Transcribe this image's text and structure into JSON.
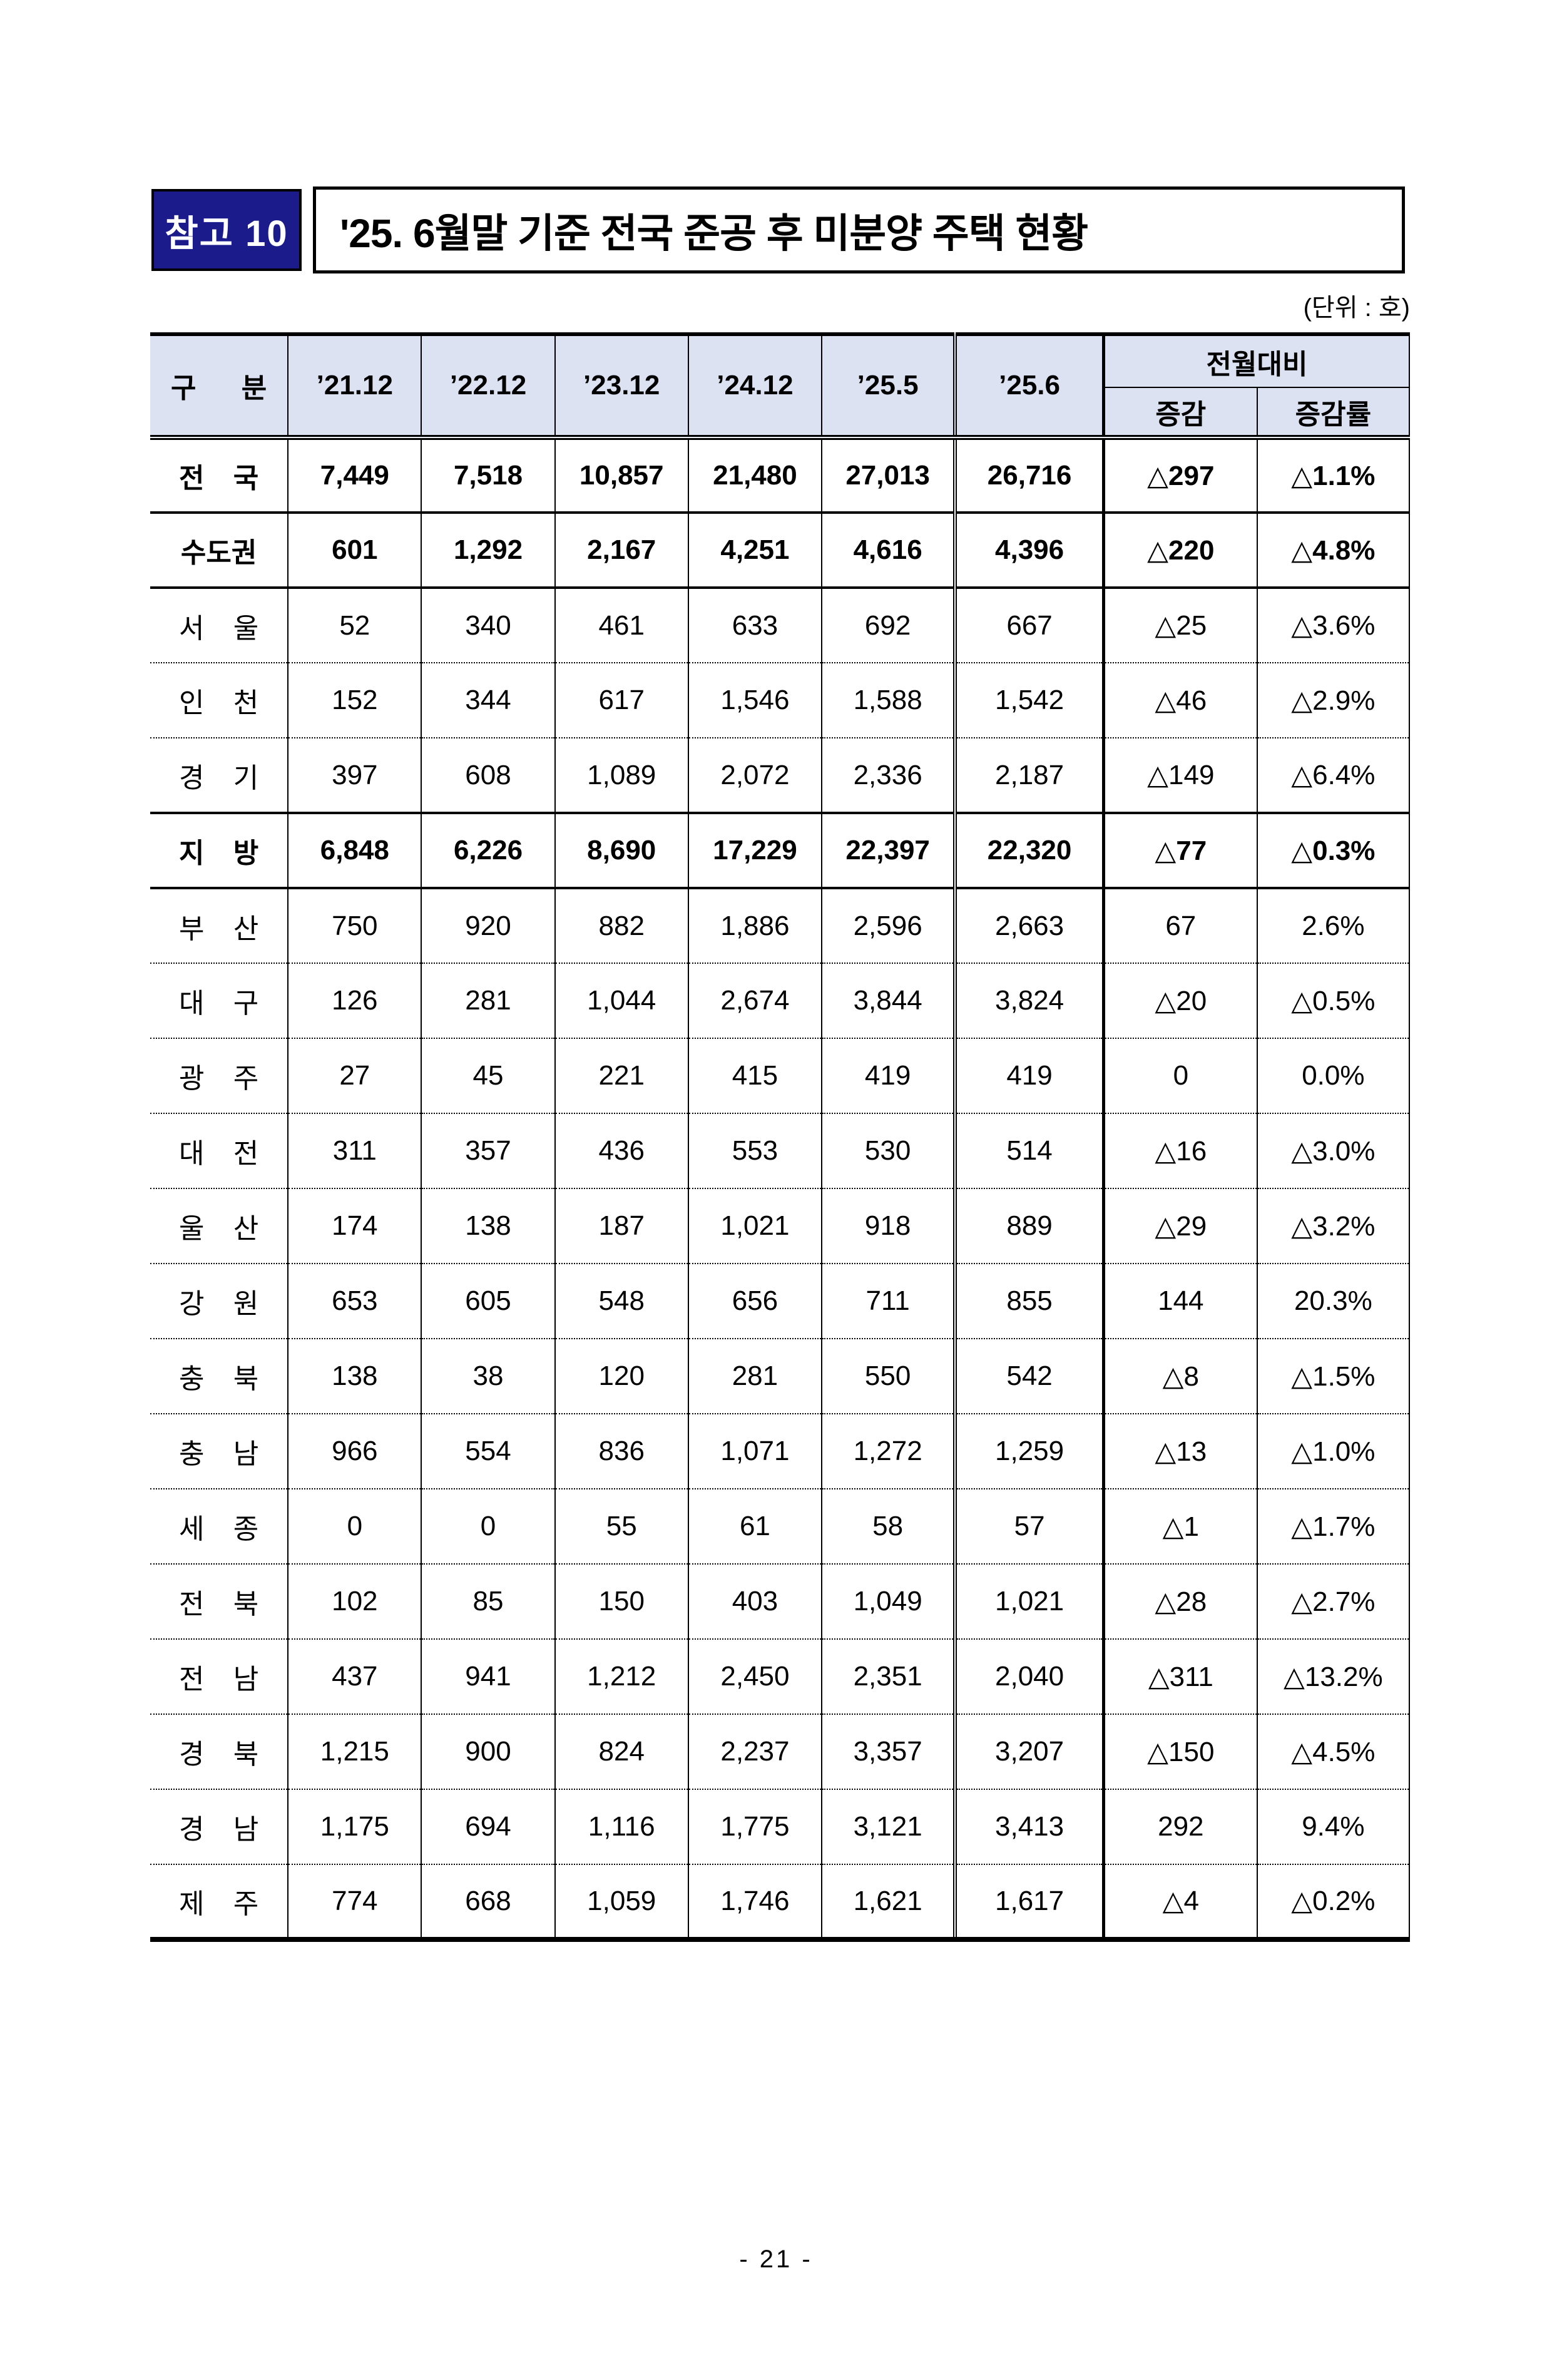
{
  "page": {
    "badge": "참고 10",
    "title": "'25. 6월말 기준 전국 준공 후 미분양 주택 현황",
    "unit_note": "(단위 : 호)",
    "page_number": "- 21 -"
  },
  "colors": {
    "badge_bg": "#1b1b8c",
    "header_bg": "#dde2f3",
    "border": "#000000"
  },
  "table": {
    "col_headers": [
      "구 분",
      "’21.12",
      "’22.12",
      "’23.12",
      "’24.12",
      "’25.5",
      "’25.6"
    ],
    "mom_header": "전월대비",
    "mom_sub_headers": [
      "증감",
      "증감률"
    ],
    "rows": [
      {
        "label": "전 국",
        "values": [
          "7,449",
          "7,518",
          "10,857",
          "21,480",
          "27,013",
          "26,716"
        ],
        "change": "△297",
        "change_rate": "△1.1%",
        "bold": true,
        "border_top": "none"
      },
      {
        "label": "수도권",
        "values": [
          "601",
          "1,292",
          "2,167",
          "4,251",
          "4,616",
          "4,396"
        ],
        "change": "△220",
        "change_rate": "△4.8%",
        "bold": true,
        "border_top": "solid"
      },
      {
        "label": "서 울",
        "values": [
          "52",
          "340",
          "461",
          "633",
          "692",
          "667"
        ],
        "change": "△25",
        "change_rate": "△3.6%",
        "bold": false,
        "border_top": "solid"
      },
      {
        "label": "인 천",
        "values": [
          "152",
          "344",
          "617",
          "1,546",
          "1,588",
          "1,542"
        ],
        "change": "△46",
        "change_rate": "△2.9%",
        "bold": false,
        "border_top": "dotted"
      },
      {
        "label": "경 기",
        "values": [
          "397",
          "608",
          "1,089",
          "2,072",
          "2,336",
          "2,187"
        ],
        "change": "△149",
        "change_rate": "△6.4%",
        "bold": false,
        "border_top": "dotted"
      },
      {
        "label": "지 방",
        "values": [
          "6,848",
          "6,226",
          "8,690",
          "17,229",
          "22,397",
          "22,320"
        ],
        "change": "△77",
        "change_rate": "△0.3%",
        "bold": true,
        "border_top": "solid"
      },
      {
        "label": "부 산",
        "values": [
          "750",
          "920",
          "882",
          "1,886",
          "2,596",
          "2,663"
        ],
        "change": "67",
        "change_rate": "2.6%",
        "bold": false,
        "border_top": "solid"
      },
      {
        "label": "대 구",
        "values": [
          "126",
          "281",
          "1,044",
          "2,674",
          "3,844",
          "3,824"
        ],
        "change": "△20",
        "change_rate": "△0.5%",
        "bold": false,
        "border_top": "dotted"
      },
      {
        "label": "광 주",
        "values": [
          "27",
          "45",
          "221",
          "415",
          "419",
          "419"
        ],
        "change": "0",
        "change_rate": "0.0%",
        "bold": false,
        "border_top": "dotted"
      },
      {
        "label": "대 전",
        "values": [
          "311",
          "357",
          "436",
          "553",
          "530",
          "514"
        ],
        "change": "△16",
        "change_rate": "△3.0%",
        "bold": false,
        "border_top": "dotted"
      },
      {
        "label": "울 산",
        "values": [
          "174",
          "138",
          "187",
          "1,021",
          "918",
          "889"
        ],
        "change": "△29",
        "change_rate": "△3.2%",
        "bold": false,
        "border_top": "dotted"
      },
      {
        "label": "강 원",
        "values": [
          "653",
          "605",
          "548",
          "656",
          "711",
          "855"
        ],
        "change": "144",
        "change_rate": "20.3%",
        "bold": false,
        "border_top": "dotted"
      },
      {
        "label": "충 북",
        "values": [
          "138",
          "38",
          "120",
          "281",
          "550",
          "542"
        ],
        "change": "△8",
        "change_rate": "△1.5%",
        "bold": false,
        "border_top": "dotted"
      },
      {
        "label": "충 남",
        "values": [
          "966",
          "554",
          "836",
          "1,071",
          "1,272",
          "1,259"
        ],
        "change": "△13",
        "change_rate": "△1.0%",
        "bold": false,
        "border_top": "dotted"
      },
      {
        "label": "세 종",
        "values": [
          "0",
          "0",
          "55",
          "61",
          "58",
          "57"
        ],
        "change": "△1",
        "change_rate": "△1.7%",
        "bold": false,
        "border_top": "dotted"
      },
      {
        "label": "전 북",
        "values": [
          "102",
          "85",
          "150",
          "403",
          "1,049",
          "1,021"
        ],
        "change": "△28",
        "change_rate": "△2.7%",
        "bold": false,
        "border_top": "dotted"
      },
      {
        "label": "전 남",
        "values": [
          "437",
          "941",
          "1,212",
          "2,450",
          "2,351",
          "2,040"
        ],
        "change": "△311",
        "change_rate": "△13.2%",
        "bold": false,
        "border_top": "dotted"
      },
      {
        "label": "경 북",
        "values": [
          "1,215",
          "900",
          "824",
          "2,237",
          "3,357",
          "3,207"
        ],
        "change": "△150",
        "change_rate": "△4.5%",
        "bold": false,
        "border_top": "dotted"
      },
      {
        "label": "경 남",
        "values": [
          "1,175",
          "694",
          "1,116",
          "1,775",
          "3,121",
          "3,413"
        ],
        "change": "292",
        "change_rate": "9.4%",
        "bold": false,
        "border_top": "dotted"
      },
      {
        "label": "제 주",
        "values": [
          "774",
          "668",
          "1,059",
          "1,746",
          "1,621",
          "1,617"
        ],
        "change": "△4",
        "change_rate": "△0.2%",
        "bold": false,
        "border_top": "dotted"
      }
    ]
  }
}
